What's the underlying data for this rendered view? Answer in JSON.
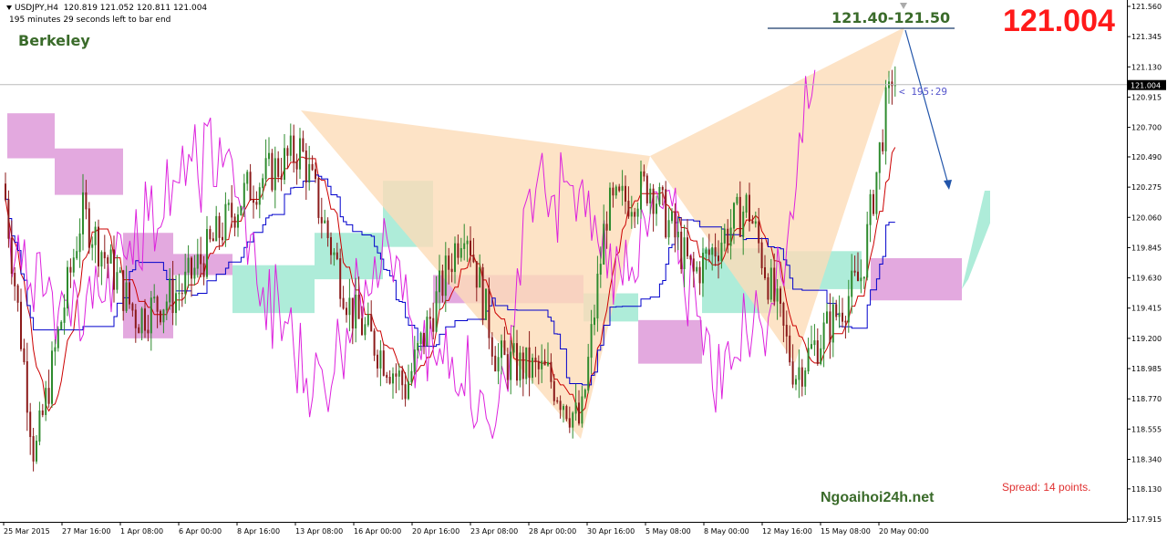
{
  "header": {
    "symbol": "USDJPY,H4",
    "ohlc": "120.819 121.052 120.811 121.004",
    "countdown": "195 minutes 29 seconds left to bar end"
  },
  "labels": {
    "brand": "Berkeley",
    "target_zone": "121.40-121.50",
    "current_price_big": "121.004",
    "bar_timer": "< 195:29",
    "spread": "Spread: 14 points.",
    "watermark": "Ngoaihoi24h.net"
  },
  "colors": {
    "bull_candle": "#2e8b2e",
    "bear_candle": "#8b1a1a",
    "tenkan": "#cc0000",
    "kijun": "#0000cc",
    "chikou": "#dd22dd",
    "cloud_bull": "#aeecd9",
    "cloud_bear": "#e3a9df",
    "pattern_fill": "#fcdcb8",
    "forecast_arrow": "#2255aa",
    "big_price": "#ff1a1a"
  },
  "chart_data": {
    "type": "candlestick",
    "instrument": "USDJPY",
    "timeframe": "H4",
    "y_ticks": [
      "121.560",
      "121.345",
      "121.130",
      "120.915",
      "120.700",
      "120.490",
      "120.275",
      "120.060",
      "119.845",
      "119.630",
      "119.415",
      "119.200",
      "118.985",
      "118.770",
      "118.555",
      "118.340",
      "118.130",
      "117.915"
    ],
    "ylim": [
      117.915,
      121.56
    ],
    "current_price": "121.004",
    "x_ticks": [
      "25 Mar 2015",
      "27 Mar 16:00",
      "1 Apr 08:00",
      "6 Apr 00:00",
      "8 Apr 16:00",
      "13 Apr 08:00",
      "16 Apr 00:00",
      "20 Apr 16:00",
      "23 Apr 08:00",
      "28 Apr 00:00",
      "30 Apr 16:00",
      "5 May 08:00",
      "8 May 00:00",
      "12 May 16:00",
      "15 May 08:00",
      "20 May 00:00"
    ],
    "pattern": {
      "name": "Berkeley",
      "points": [
        {
          "date": "13 Apr 2015",
          "price": 120.85
        },
        {
          "date": "29 Apr 2015",
          "price": 118.52
        },
        {
          "date": "5 May 2015",
          "price": 120.5
        },
        {
          "date": "13 May 2015",
          "price": 118.95
        },
        {
          "date": "21 May 2015",
          "price": 121.45
        }
      ],
      "target_zone": [
        121.4,
        121.5
      ]
    }
  }
}
